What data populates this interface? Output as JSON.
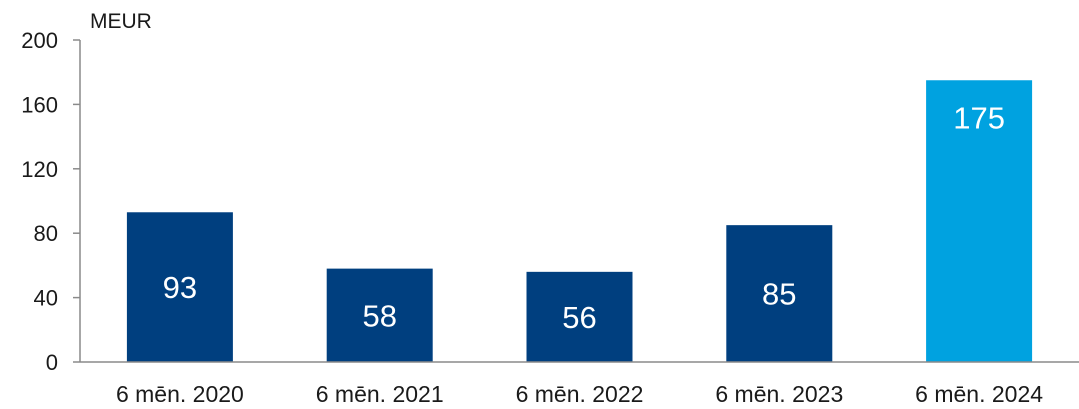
{
  "chart_data": {
    "type": "bar",
    "unit_label": "MEUR",
    "categories": [
      "6 mēn. 2020",
      "6 mēn. 2021",
      "6 mēn. 2022",
      "6 mēn. 2023",
      "6 mēn. 2024"
    ],
    "values": [
      93,
      58,
      56,
      85,
      175
    ],
    "data_labels": [
      "93",
      "58",
      "56",
      "85",
      "175"
    ],
    "ylim": [
      0,
      200
    ],
    "yticks": [
      0,
      40,
      80,
      120,
      160,
      200
    ],
    "grid": false,
    "legend": "none",
    "colors": {
      "bar": "#003f7f",
      "highlight_bar": "#00a2e0",
      "axis": "#8a8a8a",
      "text": "#1a1a1a"
    },
    "highlight_index": 4
  }
}
